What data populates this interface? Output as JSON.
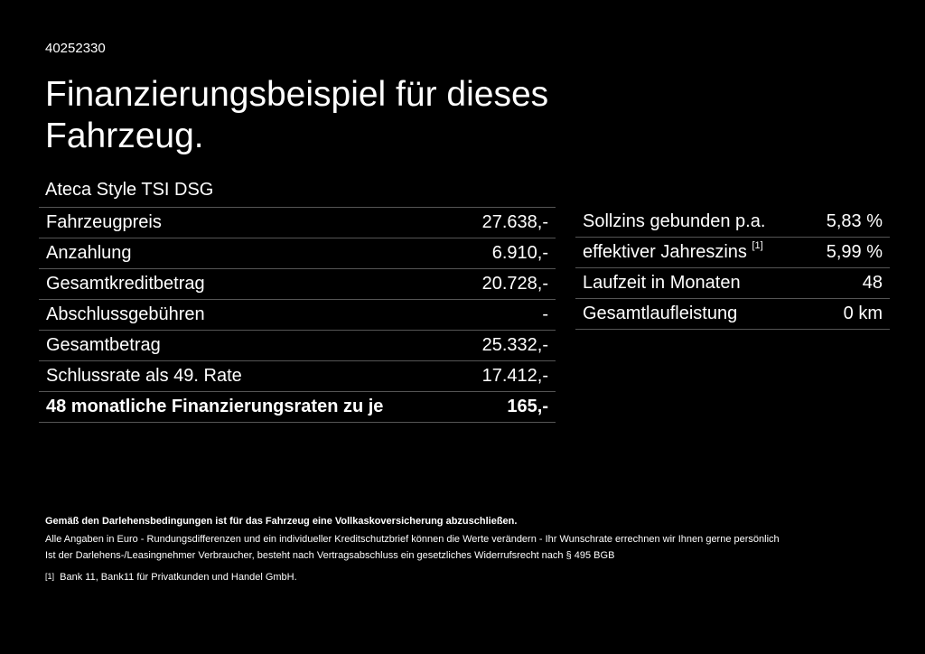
{
  "header": {
    "vehicle_id": "40252330",
    "title": "Finanzierungsbeispiel für dieses Fahrzeug.",
    "model": "Ateca Style TSI DSG"
  },
  "left_table": {
    "rows": [
      [
        "Fahrzeugpreis",
        "27.638,-"
      ],
      [
        "Anzahlung",
        "6.910,-"
      ],
      [
        "Gesamtkreditbetrag",
        "20.728,-"
      ],
      [
        "Abschlussgebühren",
        "-"
      ],
      [
        "Gesamtbetrag",
        "25.332,-"
      ],
      [
        "Schlussrate als 49. Rate",
        "17.412,-"
      ],
      [
        "48 monatliche Finanzierungsraten zu je",
        "165,-"
      ]
    ]
  },
  "right_table": {
    "rows": [
      [
        "Sollzins gebunden p.a.",
        "5,83 %"
      ],
      [
        "effektiver Jahreszins",
        "5,99 %"
      ],
      [
        "Laufzeit in Monaten",
        "48"
      ],
      [
        "Gesamtlaufleistung",
        "0 km"
      ]
    ],
    "footnote_ref": "[1]"
  },
  "footer": {
    "insurance_note": "Gemäß den Darlehensbedingungen ist für das Fahrzeug eine Vollkaskoversicherung abzuschließen.",
    "notes": [
      "Alle Angaben in Euro - Rundungsdifferenzen und ein individueller Kreditschutzbrief können die Werte verändern - Ihr Wunschrate errechnen wir Ihnen gerne persönlich",
      "Ist der Darlehens-/Leasingnehmer Verbraucher, besteht nach Vertragsabschluss ein gesetzliches Widerrufsrecht nach § 495 BGB"
    ],
    "footnote_marker": "[1]",
    "footnote_text": "Bank 11, Bank11 für Privatkunden und Handel GmbH."
  }
}
